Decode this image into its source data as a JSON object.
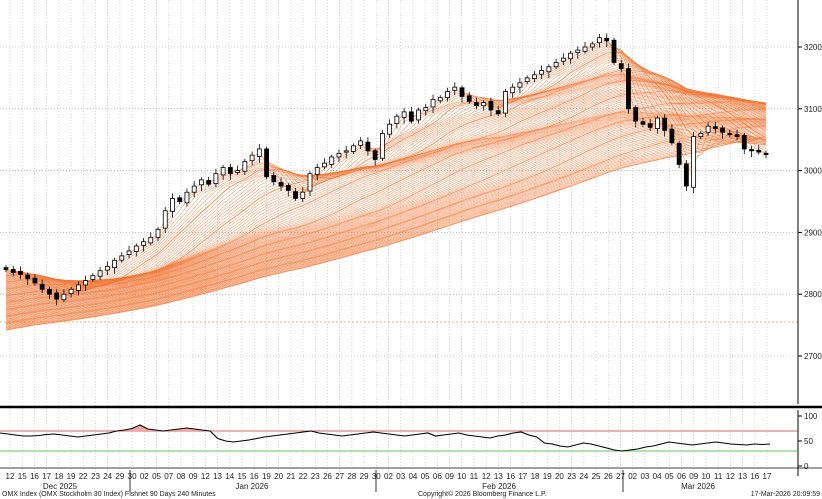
{
  "chart_data": {
    "type": "candlestick",
    "main_panel": {
      "ylim": [
        2630,
        3250
      ],
      "yticks": [
        2700,
        2800,
        2900,
        3000,
        3100,
        3200
      ],
      "reference_line": 2755,
      "grid": "vertical-dotted-daily",
      "candles_close_approx": [
        2840,
        2835,
        2832,
        2825,
        2818,
        2808,
        2800,
        2792,
        2800,
        2808,
        2815,
        2822,
        2830,
        2838,
        2845,
        2855,
        2862,
        2870,
        2878,
        2885,
        2892,
        2905,
        2935,
        2955,
        2950,
        2965,
        2975,
        2985,
        2978,
        2995,
        3005,
        2995,
        3000,
        3015,
        3025,
        3035,
        2990,
        2982,
        2975,
        2968,
        2955,
        2965,
        2995,
        3005,
        3012,
        3022,
        3028,
        3032,
        3040,
        3048,
        3032,
        3018,
        3060,
        3075,
        3088,
        3095,
        3080,
        3098,
        3102,
        3115,
        3118,
        3128,
        3135,
        3120,
        3112,
        3105,
        3110,
        3098,
        3092,
        3128,
        3135,
        3142,
        3150,
        3155,
        3162,
        3168,
        3175,
        3182,
        3190,
        3195,
        3200,
        3205,
        3215,
        3210,
        3175,
        3165,
        3100,
        3080,
        3075,
        3070,
        3085,
        3065,
        3045,
        3010,
        2975,
        3055,
        3060,
        3072,
        3068,
        3062,
        3058,
        3055,
        3035,
        3032,
        3030,
        3026
      ],
      "fishnet_description": "90 moving averages fanning from recent price down to long-term trend"
    },
    "lower_panel": {
      "ylim": [
        0,
        100
      ],
      "yticks": [
        0,
        50,
        100
      ],
      "overbought": 70,
      "oversold": 30,
      "values_approx": [
        66,
        64,
        62,
        60,
        60,
        61,
        63,
        64,
        62,
        60,
        58,
        60,
        62,
        64,
        66,
        70,
        72,
        75,
        82,
        74,
        72,
        70,
        72,
        74,
        76,
        74,
        72,
        70,
        55,
        50,
        48,
        50,
        52,
        55,
        58,
        60,
        62,
        64,
        66,
        68,
        70,
        66,
        64,
        62,
        60,
        62,
        64,
        66,
        68,
        66,
        64,
        62,
        60,
        62,
        64,
        66,
        60,
        62,
        64,
        66,
        62,
        60,
        58,
        56,
        60,
        62,
        66,
        68,
        62,
        58,
        46,
        44,
        40,
        38,
        42,
        46,
        44,
        40,
        36,
        32,
        30,
        32,
        34,
        38,
        40,
        44,
        48,
        46,
        44,
        42,
        44,
        46,
        48,
        46,
        44,
        43,
        42,
        44,
        43,
        44
      ]
    },
    "x_ticks": [
      "12",
      "15",
      "16",
      "17",
      "18",
      "19",
      "22",
      "23",
      "24",
      "29",
      "30",
      "02",
      "05",
      "07",
      "08",
      "09",
      "12",
      "13",
      "14",
      "15",
      "16",
      "19",
      "20",
      "21",
      "22",
      "23",
      "26",
      "27",
      "28",
      "29",
      "30",
      "02",
      "03",
      "04",
      "05",
      "06",
      "09",
      "10",
      "11",
      "12",
      "13",
      "16",
      "17",
      "18",
      "19",
      "20",
      "23",
      "24",
      "25",
      "26",
      "27",
      "02",
      "03",
      "04",
      "05",
      "06",
      "09",
      "10",
      "11",
      "12",
      "13",
      "16",
      "17"
    ],
    "month_labels": [
      "Dec 2025",
      "Jan 2026",
      "Feb 2026",
      "Mar 2026"
    ]
  },
  "footer": {
    "left": "OMX Index (OMX Stockholm 30 Index) Fishnet 90 Days 240 Minutes",
    "center": "Copyright© 2026 Bloomberg Finance L.P.",
    "right": "17-Mar-2026 20:09:59"
  },
  "colors": {
    "fishnet": "#f07838",
    "candle": "#000000",
    "ref_line": "#e8a040",
    "overbought": "#c03030",
    "oversold": "#30b030",
    "osc_fill": "#f2a6a6"
  }
}
